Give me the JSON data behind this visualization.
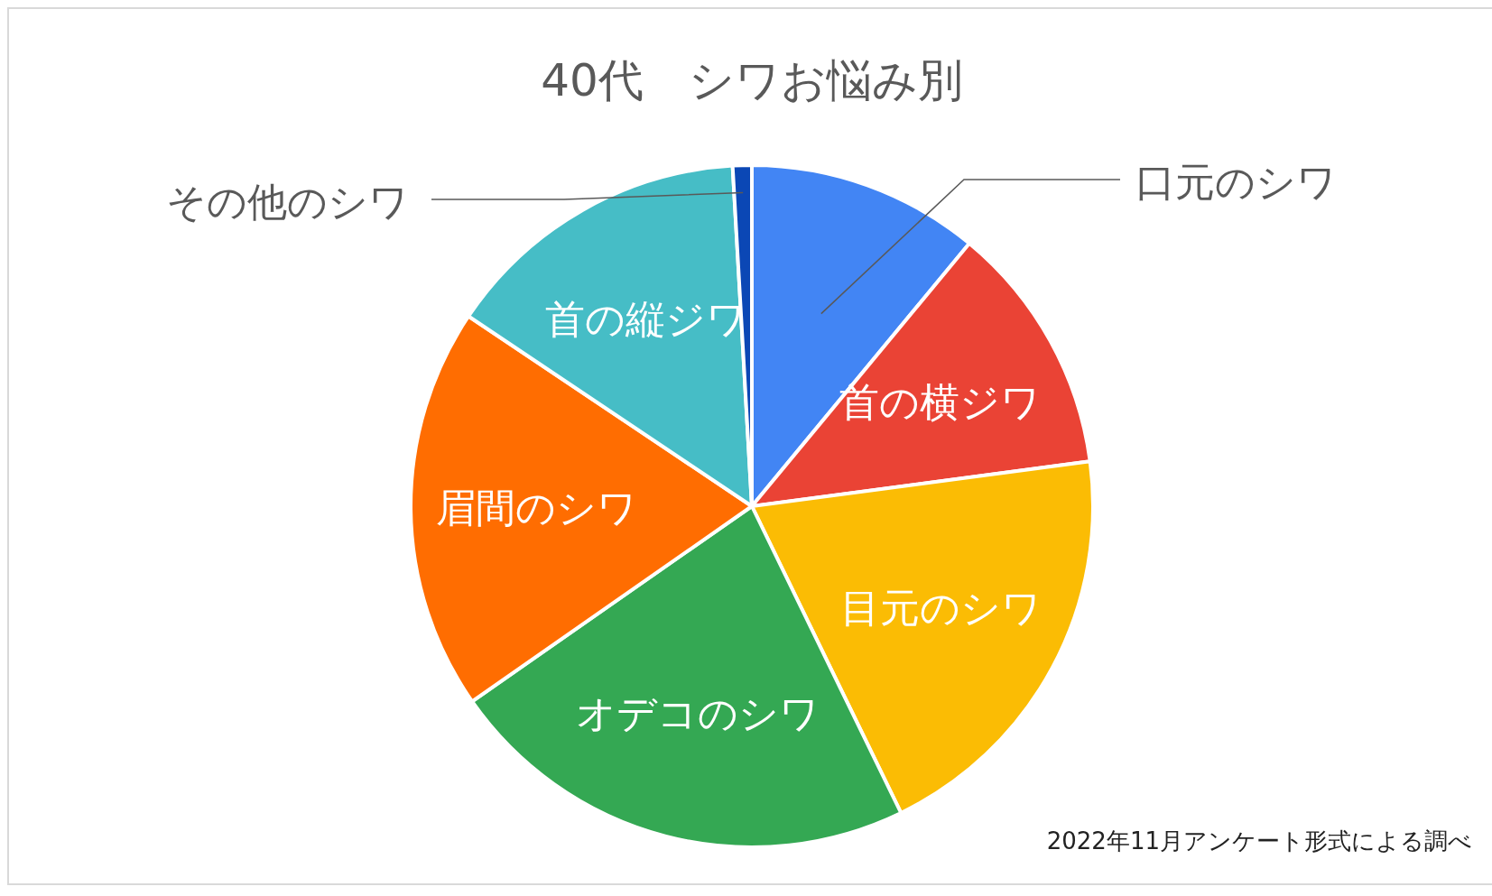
{
  "chart_data": {
    "type": "pie",
    "title": "40代　シワお悩み別",
    "categories": [
      "口元のシワ",
      "首の横ジワ",
      "目元のシワ",
      "オデコのシワ",
      "眉間のシワ",
      "首の縦ジワ",
      "その他のシワ"
    ],
    "values": [
      11.0,
      11.9,
      19.9,
      22.5,
      19.1,
      14.7,
      0.9
    ],
    "colors": [
      "#4285f4",
      "#ea4335",
      "#fbbc04",
      "#34a853",
      "#ff6d01",
      "#46bdc6",
      "#0b47b5"
    ],
    "annotations": [
      "2022年11月アンケート形式による調べ"
    ]
  }
}
